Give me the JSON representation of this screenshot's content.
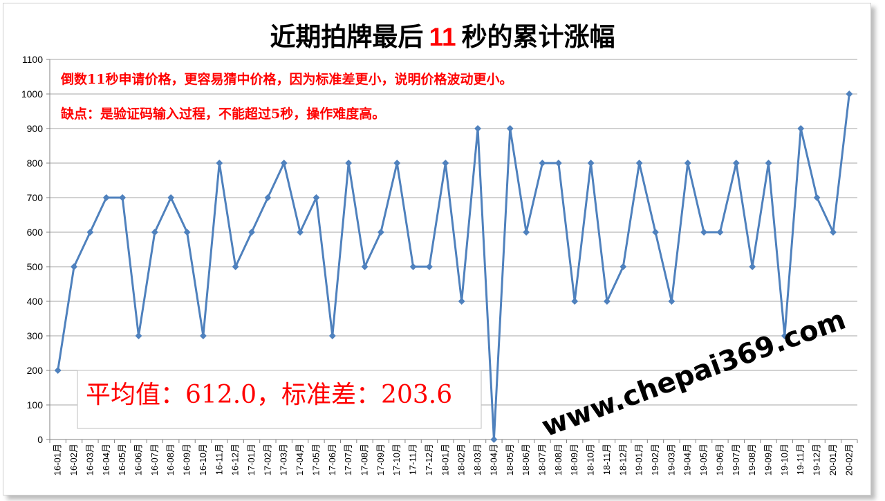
{
  "chart_data": {
    "type": "line",
    "title_parts": [
      "近期拍牌最后",
      "11",
      "秒的累计涨幅"
    ],
    "annotations": [
      "倒数11秒申请价格，更容易猜中价格，因为标准差更小，说明价格波动更小。",
      "缺点：是验证码输入过程，不能超过5秒，操作难度高。"
    ],
    "stats_label": "平均值：612.0，标准差：203.6",
    "watermark": "www.chepai369.com",
    "ylim": [
      0,
      1100
    ],
    "yticks": [
      0,
      100,
      200,
      300,
      400,
      500,
      600,
      700,
      800,
      900,
      1000,
      1100
    ],
    "grid": true,
    "categories": [
      "16-01月",
      "16-02月",
      "16-03月",
      "16-04月",
      "16-05月",
      "16-06月",
      "16-07月",
      "16-08月",
      "16-09月",
      "16-10月",
      "16-11月",
      "16-12月",
      "17-01月",
      "17-02月",
      "17-03月",
      "17-04月",
      "17-05月",
      "17-06月",
      "17-07月",
      "17-08月",
      "17-09月",
      "17-10月",
      "17-11月",
      "17-12月",
      "18-01月",
      "18-02月",
      "18-03月",
      "18-04月",
      "18-05月",
      "18-06月",
      "18-07月",
      "18-08月",
      "18-09月",
      "18-10月",
      "18-11月",
      "18-12月",
      "19-01月",
      "19-02月",
      "19-03月",
      "19-04月",
      "19-05月",
      "19-06月",
      "19-07月",
      "19-08月",
      "19-09月",
      "19-10月",
      "19-11月",
      "19-12月",
      "20-01月",
      "20-02月"
    ],
    "series": [
      {
        "values": [
          200,
          500,
          600,
          700,
          700,
          300,
          600,
          700,
          600,
          300,
          800,
          500,
          600,
          700,
          800,
          600,
          700,
          300,
          800,
          500,
          600,
          800,
          500,
          500,
          800,
          400,
          900,
          0,
          900,
          600,
          800,
          800,
          400,
          800,
          400,
          500,
          800,
          600,
          400,
          800,
          600,
          600,
          800,
          500,
          800,
          300,
          900,
          700,
          600,
          1000
        ]
      }
    ],
    "colors": {
      "line": "#4f81bd",
      "marker": "#4f81bd",
      "grid": "#a6a6a6",
      "title_accent": "#ff0000",
      "annotation": "#ff0000"
    }
  }
}
